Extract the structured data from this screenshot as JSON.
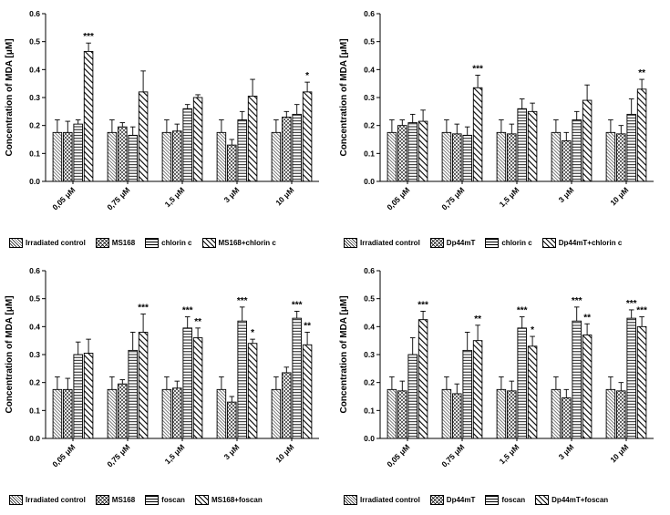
{
  "figure": {
    "background": "#ffffff",
    "bar_outline_color": "#000000",
    "panel_count": 4
  },
  "chart_data": [
    {
      "id": "ms168-chlorin",
      "type": "bar",
      "title": "",
      "ylabel": "Concentration of MDA [μM]",
      "xlabel": "",
      "ylim": [
        0,
        0.6
      ],
      "ytick_step": 0.1,
      "grid": false,
      "legend_position": "bottom",
      "categories": [
        "0,05 μM",
        "0,75 μM",
        "1,5 μM",
        "3 μM",
        "10 μM"
      ],
      "series": [
        {
          "name": "Irradiated control",
          "pattern": "fine-diagonal",
          "values": [
            0.175,
            0.175,
            0.175,
            0.175,
            0.175
          ],
          "errors": [
            0.045,
            0.045,
            0.045,
            0.045,
            0.045
          ]
        },
        {
          "name": "MS168",
          "pattern": "crosshatch",
          "values": [
            0.175,
            0.195,
            0.18,
            0.13,
            0.23
          ],
          "errors": [
            0.04,
            0.015,
            0.025,
            0.02,
            0.02
          ]
        },
        {
          "name": "chlorin c",
          "pattern": "horizontal",
          "values": [
            0.205,
            0.165,
            0.26,
            0.22,
            0.24
          ],
          "errors": [
            0.015,
            0.03,
            0.015,
            0.03,
            0.035
          ]
        },
        {
          "name": "MS168+chlorin c",
          "pattern": "wide-diagonal",
          "values": [
            0.465,
            0.32,
            0.3,
            0.305,
            0.32
          ],
          "errors": [
            0.03,
            0.075,
            0.01,
            0.06,
            0.035
          ]
        }
      ],
      "significance": [
        {
          "category": 0,
          "series": 3,
          "label": "***"
        },
        {
          "category": 4,
          "series": 3,
          "label": "*"
        }
      ]
    },
    {
      "id": "dp44mt-chlorin",
      "type": "bar",
      "title": "",
      "ylabel": "Concentration of MDA [μM]",
      "xlabel": "",
      "ylim": [
        0,
        0.6
      ],
      "ytick_step": 0.1,
      "grid": false,
      "legend_position": "bottom",
      "categories": [
        "0,05 μM",
        "0,75 μM",
        "1,5 μM",
        "3 μM",
        "10 μM"
      ],
      "series": [
        {
          "name": "Irradiated control",
          "pattern": "fine-diagonal",
          "values": [
            0.175,
            0.175,
            0.175,
            0.175,
            0.175
          ],
          "errors": [
            0.045,
            0.045,
            0.045,
            0.045,
            0.045
          ]
        },
        {
          "name": "Dp44mT",
          "pattern": "crosshatch",
          "values": [
            0.2,
            0.17,
            0.17,
            0.145,
            0.17
          ],
          "errors": [
            0.02,
            0.035,
            0.035,
            0.03,
            0.03
          ]
        },
        {
          "name": "chlorin c",
          "pattern": "horizontal",
          "values": [
            0.21,
            0.165,
            0.26,
            0.22,
            0.24
          ],
          "errors": [
            0.03,
            0.03,
            0.035,
            0.03,
            0.055
          ]
        },
        {
          "name": "Dp44mT+chlorin c",
          "pattern": "wide-diagonal",
          "values": [
            0.215,
            0.335,
            0.25,
            0.29,
            0.33
          ],
          "errors": [
            0.04,
            0.045,
            0.03,
            0.055,
            0.035
          ]
        }
      ],
      "significance": [
        {
          "category": 1,
          "series": 3,
          "label": "***"
        },
        {
          "category": 4,
          "series": 3,
          "label": "**"
        }
      ]
    },
    {
      "id": "ms168-foscan",
      "type": "bar",
      "title": "",
      "ylabel": "Concentration of MDA [μM]",
      "xlabel": "",
      "ylim": [
        0,
        0.6
      ],
      "ytick_step": 0.1,
      "grid": false,
      "legend_position": "bottom",
      "categories": [
        "0,05 μM",
        "0,75 μM",
        "1,5 μM",
        "3 μM",
        "10 μM"
      ],
      "series": [
        {
          "name": "Irradiated control",
          "pattern": "fine-diagonal",
          "values": [
            0.175,
            0.175,
            0.175,
            0.175,
            0.175
          ],
          "errors": [
            0.045,
            0.045,
            0.045,
            0.045,
            0.045
          ]
        },
        {
          "name": "MS168",
          "pattern": "crosshatch",
          "values": [
            0.175,
            0.195,
            0.18,
            0.13,
            0.235
          ],
          "errors": [
            0.04,
            0.015,
            0.025,
            0.02,
            0.02
          ]
        },
        {
          "name": "foscan",
          "pattern": "horizontal",
          "values": [
            0.3,
            0.315,
            0.395,
            0.42,
            0.43
          ],
          "errors": [
            0.045,
            0.065,
            0.04,
            0.05,
            0.025
          ]
        },
        {
          "name": "MS168+foscan",
          "pattern": "wide-diagonal",
          "values": [
            0.305,
            0.38,
            0.36,
            0.34,
            0.335
          ],
          "errors": [
            0.05,
            0.065,
            0.035,
            0.015,
            0.045
          ]
        }
      ],
      "significance": [
        {
          "category": 1,
          "series": 3,
          "label": "***"
        },
        {
          "category": 2,
          "series": 2,
          "label": "***"
        },
        {
          "category": 2,
          "series": 3,
          "label": "**"
        },
        {
          "category": 3,
          "series": 2,
          "label": "***"
        },
        {
          "category": 3,
          "series": 3,
          "label": "*"
        },
        {
          "category": 4,
          "series": 2,
          "label": "***"
        },
        {
          "category": 4,
          "series": 3,
          "label": "**"
        }
      ]
    },
    {
      "id": "dp44mt-foscan",
      "type": "bar",
      "title": "",
      "ylabel": "Concentration of MDA [μM]",
      "xlabel": "",
      "ylim": [
        0,
        0.6
      ],
      "ytick_step": 0.1,
      "grid": false,
      "legend_position": "bottom",
      "categories": [
        "0,05 μM",
        "0,75 μM",
        "1,5 μM",
        "3 μM",
        "10 μM"
      ],
      "series": [
        {
          "name": "Irradiated control",
          "pattern": "fine-diagonal",
          "values": [
            0.175,
            0.175,
            0.175,
            0.175,
            0.175
          ],
          "errors": [
            0.045,
            0.045,
            0.045,
            0.045,
            0.045
          ]
        },
        {
          "name": "Dp44mT",
          "pattern": "crosshatch",
          "values": [
            0.17,
            0.16,
            0.17,
            0.145,
            0.17
          ],
          "errors": [
            0.035,
            0.035,
            0.035,
            0.03,
            0.03
          ]
        },
        {
          "name": "foscan",
          "pattern": "horizontal",
          "values": [
            0.3,
            0.315,
            0.395,
            0.42,
            0.43
          ],
          "errors": [
            0.06,
            0.065,
            0.04,
            0.05,
            0.03
          ]
        },
        {
          "name": "Dp44mT+foscan",
          "pattern": "wide-diagonal",
          "values": [
            0.425,
            0.35,
            0.33,
            0.37,
            0.4
          ],
          "errors": [
            0.03,
            0.055,
            0.035,
            0.04,
            0.035
          ]
        }
      ],
      "significance": [
        {
          "category": 0,
          "series": 3,
          "label": "***"
        },
        {
          "category": 1,
          "series": 3,
          "label": "**"
        },
        {
          "category": 2,
          "series": 2,
          "label": "***"
        },
        {
          "category": 2,
          "series": 3,
          "label": "*"
        },
        {
          "category": 3,
          "series": 2,
          "label": "***"
        },
        {
          "category": 3,
          "series": 3,
          "label": "**"
        },
        {
          "category": 4,
          "series": 2,
          "label": "***"
        },
        {
          "category": 4,
          "series": 3,
          "label": "***"
        }
      ]
    }
  ]
}
